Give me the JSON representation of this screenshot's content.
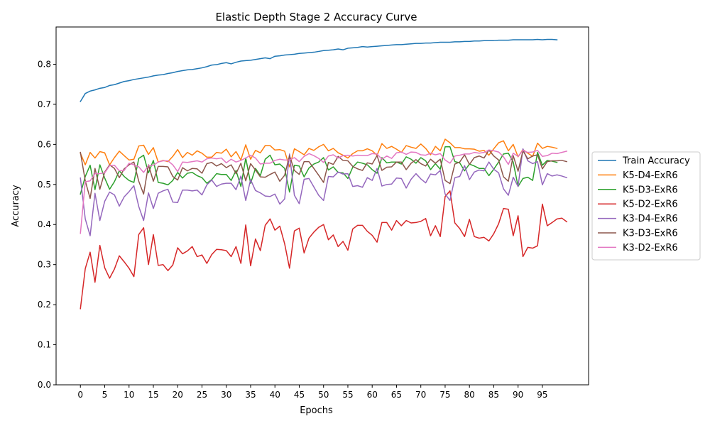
{
  "chart_data": {
    "type": "line",
    "title": "Elastic Depth Stage 2 Accuracy Curve",
    "xlabel": "Epochs",
    "ylabel": "Accuracy",
    "xlim": [
      -5,
      104.5
    ],
    "ylim": [
      0.0,
      0.893
    ],
    "x_ticks": [
      0,
      5,
      10,
      15,
      20,
      25,
      30,
      35,
      40,
      45,
      50,
      55,
      60,
      65,
      70,
      75,
      80,
      85,
      90,
      95
    ],
    "y_ticks": [
      0.0,
      0.1,
      0.2,
      0.3,
      0.4,
      0.5,
      0.6,
      0.7,
      0.8
    ],
    "y_tick_labels": [
      "0.0",
      "0.1",
      "0.2",
      "0.3",
      "0.4",
      "0.5",
      "0.6",
      "0.7",
      "0.8"
    ],
    "legend_position": "center-right-outside",
    "grid": false,
    "series": [
      {
        "name": "Train Accuracy",
        "color": "#1f77b4",
        "values": [
          0.707,
          0.727,
          0.733,
          0.736,
          0.74,
          0.742,
          0.747,
          0.749,
          0.753,
          0.757,
          0.759,
          0.762,
          0.764,
          0.766,
          0.768,
          0.771,
          0.773,
          0.774,
          0.777,
          0.779,
          0.782,
          0.784,
          0.786,
          0.787,
          0.789,
          0.791,
          0.794,
          0.798,
          0.799,
          0.802,
          0.804,
          0.801,
          0.805,
          0.808,
          0.809,
          0.81,
          0.812,
          0.814,
          0.816,
          0.814,
          0.82,
          0.821,
          0.823,
          0.824,
          0.825,
          0.827,
          0.828,
          0.829,
          0.83,
          0.832,
          0.834,
          0.835,
          0.836,
          0.838,
          0.836,
          0.84,
          0.841,
          0.842,
          0.844,
          0.843,
          0.844,
          0.845,
          0.846,
          0.847,
          0.848,
          0.849,
          0.849,
          0.85,
          0.851,
          0.852,
          0.852,
          0.853,
          0.853,
          0.854,
          0.855,
          0.855,
          0.855,
          0.856,
          0.856,
          0.857,
          0.857,
          0.858,
          0.858,
          0.859,
          0.859,
          0.859,
          0.86,
          0.86,
          0.86,
          0.861,
          0.861,
          0.861,
          0.861,
          0.861,
          0.862,
          0.861,
          0.862,
          0.862,
          0.861
        ]
      },
      {
        "name": "K5-D4-ExR6",
        "color": "#ff7f0e",
        "values": [
          0.578,
          0.549,
          0.58,
          0.566,
          0.582,
          0.579,
          0.549,
          0.567,
          0.583,
          0.572,
          0.561,
          0.563,
          0.596,
          0.598,
          0.575,
          0.592,
          0.556,
          0.56,
          0.557,
          0.57,
          0.587,
          0.567,
          0.58,
          0.573,
          0.584,
          0.578,
          0.568,
          0.568,
          0.58,
          0.578,
          0.588,
          0.569,
          0.582,
          0.561,
          0.599,
          0.563,
          0.585,
          0.579,
          0.597,
          0.597,
          0.586,
          0.587,
          0.583,
          0.544,
          0.589,
          0.582,
          0.574,
          0.59,
          0.585,
          0.594,
          0.6,
          0.584,
          0.59,
          0.579,
          0.573,
          0.566,
          0.577,
          0.584,
          0.584,
          0.589,
          0.584,
          0.573,
          0.602,
          0.59,
          0.595,
          0.588,
          0.58,
          0.597,
          0.593,
          0.59,
          0.601,
          0.59,
          0.574,
          0.595,
          0.584,
          0.613,
          0.604,
          0.592,
          0.592,
          0.589,
          0.589,
          0.588,
          0.583,
          0.585,
          0.573,
          0.589,
          0.604,
          0.609,
          0.584,
          0.6,
          0.569,
          0.587,
          0.578,
          0.57,
          0.603,
          0.59,
          0.595,
          0.593,
          0.59
        ]
      },
      {
        "name": "K5-D3-ExR6",
        "color": "#2ca02c",
        "values": [
          0.476,
          0.52,
          0.548,
          0.487,
          0.549,
          0.516,
          0.488,
          0.507,
          0.534,
          0.52,
          0.51,
          0.505,
          0.565,
          0.573,
          0.529,
          0.56,
          0.505,
          0.503,
          0.499,
          0.51,
          0.53,
          0.516,
          0.528,
          0.53,
          0.522,
          0.517,
          0.503,
          0.512,
          0.527,
          0.525,
          0.525,
          0.51,
          0.535,
          0.495,
          0.566,
          0.503,
          0.54,
          0.522,
          0.563,
          0.573,
          0.549,
          0.551,
          0.54,
          0.481,
          0.548,
          0.546,
          0.519,
          0.541,
          0.551,
          0.556,
          0.567,
          0.536,
          0.544,
          0.53,
          0.529,
          0.515,
          0.543,
          0.556,
          0.553,
          0.549,
          0.537,
          0.528,
          0.567,
          0.554,
          0.556,
          0.556,
          0.551,
          0.569,
          0.563,
          0.553,
          0.567,
          0.559,
          0.537,
          0.552,
          0.538,
          0.594,
          0.594,
          0.557,
          0.554,
          0.534,
          0.551,
          0.546,
          0.54,
          0.54,
          0.522,
          0.538,
          0.556,
          0.576,
          0.578,
          0.556,
          0.495,
          0.515,
          0.518,
          0.51,
          0.58,
          0.548,
          0.56,
          0.558,
          0.555
        ]
      },
      {
        "name": "K5-D2-ExR6",
        "color": "#d62728",
        "values": [
          0.19,
          0.29,
          0.331,
          0.256,
          0.348,
          0.292,
          0.266,
          0.289,
          0.322,
          0.307,
          0.291,
          0.27,
          0.375,
          0.392,
          0.3,
          0.375,
          0.298,
          0.3,
          0.285,
          0.299,
          0.342,
          0.327,
          0.334,
          0.345,
          0.32,
          0.324,
          0.303,
          0.325,
          0.338,
          0.337,
          0.335,
          0.32,
          0.345,
          0.303,
          0.399,
          0.297,
          0.364,
          0.335,
          0.398,
          0.414,
          0.386,
          0.396,
          0.352,
          0.291,
          0.384,
          0.391,
          0.329,
          0.366,
          0.381,
          0.393,
          0.4,
          0.362,
          0.374,
          0.345,
          0.358,
          0.336,
          0.389,
          0.398,
          0.398,
          0.383,
          0.373,
          0.356,
          0.405,
          0.405,
          0.386,
          0.41,
          0.397,
          0.41,
          0.404,
          0.405,
          0.408,
          0.415,
          0.372,
          0.397,
          0.37,
          0.47,
          0.484,
          0.404,
          0.39,
          0.37,
          0.413,
          0.37,
          0.366,
          0.368,
          0.359,
          0.377,
          0.402,
          0.44,
          0.438,
          0.372,
          0.422,
          0.32,
          0.343,
          0.341,
          0.347,
          0.451,
          0.397,
          0.405,
          0.414,
          0.416,
          0.407
        ]
      },
      {
        "name": "K3-D4-ExR6",
        "color": "#9467bd",
        "values": [
          0.516,
          0.414,
          0.372,
          0.478,
          0.41,
          0.458,
          0.481,
          0.474,
          0.446,
          0.469,
          0.482,
          0.497,
          0.445,
          0.41,
          0.479,
          0.44,
          0.478,
          0.484,
          0.488,
          0.456,
          0.455,
          0.486,
          0.486,
          0.484,
          0.486,
          0.474,
          0.499,
          0.511,
          0.495,
          0.501,
          0.503,
          0.503,
          0.487,
          0.521,
          0.46,
          0.512,
          0.485,
          0.479,
          0.471,
          0.47,
          0.476,
          0.451,
          0.464,
          0.576,
          0.473,
          0.452,
          0.513,
          0.515,
          0.494,
          0.473,
          0.46,
          0.52,
          0.519,
          0.531,
          0.526,
          0.527,
          0.495,
          0.497,
          0.493,
          0.517,
          0.51,
          0.54,
          0.496,
          0.5,
          0.501,
          0.516,
          0.515,
          0.491,
          0.513,
          0.527,
          0.514,
          0.504,
          0.526,
          0.524,
          0.535,
          0.476,
          0.46,
          0.517,
          0.52,
          0.547,
          0.512,
          0.531,
          0.536,
          0.534,
          0.556,
          0.538,
          0.529,
          0.489,
          0.473,
          0.518,
          0.495,
          0.589,
          0.559,
          0.552,
          0.557,
          0.499,
          0.527,
          0.521,
          0.524,
          0.521,
          0.517
        ]
      },
      {
        "name": "K3-D3-ExR6",
        "color": "#8c564b",
        "values": [
          0.58,
          0.509,
          0.465,
          0.54,
          0.488,
          0.531,
          0.549,
          0.54,
          0.517,
          0.539,
          0.549,
          0.556,
          0.508,
          0.476,
          0.549,
          0.508,
          0.545,
          0.545,
          0.544,
          0.52,
          0.511,
          0.542,
          0.534,
          0.54,
          0.539,
          0.528,
          0.552,
          0.555,
          0.546,
          0.552,
          0.542,
          0.549,
          0.527,
          0.553,
          0.509,
          0.552,
          0.536,
          0.519,
          0.518,
          0.525,
          0.531,
          0.508,
          0.523,
          0.572,
          0.535,
          0.525,
          0.557,
          0.557,
          0.54,
          0.523,
          0.505,
          0.555,
          0.55,
          0.57,
          0.56,
          0.559,
          0.545,
          0.539,
          0.535,
          0.554,
          0.551,
          0.572,
          0.535,
          0.543,
          0.544,
          0.556,
          0.556,
          0.537,
          0.553,
          0.562,
          0.552,
          0.546,
          0.563,
          0.553,
          0.563,
          0.51,
          0.502,
          0.551,
          0.556,
          0.574,
          0.55,
          0.567,
          0.571,
          0.566,
          0.586,
          0.571,
          0.561,
          0.519,
          0.508,
          0.572,
          0.533,
          0.584,
          0.564,
          0.571,
          0.574,
          0.539,
          0.557,
          0.559,
          0.559,
          0.56,
          0.557
        ]
      },
      {
        "name": "K3-D2-ExR6",
        "color": "#e377c2",
        "values": [
          0.378,
          0.507,
          0.509,
          0.527,
          0.527,
          0.529,
          0.547,
          0.548,
          0.534,
          0.535,
          0.553,
          0.549,
          0.544,
          0.53,
          0.547,
          0.548,
          0.556,
          0.559,
          0.559,
          0.549,
          0.532,
          0.556,
          0.555,
          0.557,
          0.559,
          0.556,
          0.564,
          0.566,
          0.564,
          0.566,
          0.554,
          0.563,
          0.556,
          0.56,
          0.566,
          0.573,
          0.566,
          0.551,
          0.553,
          0.553,
          0.56,
          0.563,
          0.561,
          0.561,
          0.567,
          0.557,
          0.57,
          0.577,
          0.572,
          0.565,
          0.555,
          0.571,
          0.574,
          0.566,
          0.572,
          0.573,
          0.571,
          0.573,
          0.572,
          0.572,
          0.577,
          0.576,
          0.563,
          0.571,
          0.565,
          0.579,
          0.581,
          0.575,
          0.581,
          0.58,
          0.574,
          0.573,
          0.578,
          0.574,
          0.577,
          0.561,
          0.553,
          0.571,
          0.573,
          0.576,
          0.576,
          0.58,
          0.578,
          0.58,
          0.586,
          0.584,
          0.581,
          0.569,
          0.55,
          0.578,
          0.57,
          0.585,
          0.58,
          0.581,
          0.585,
          0.57,
          0.572,
          0.578,
          0.577,
          0.58,
          0.583
        ]
      }
    ]
  }
}
